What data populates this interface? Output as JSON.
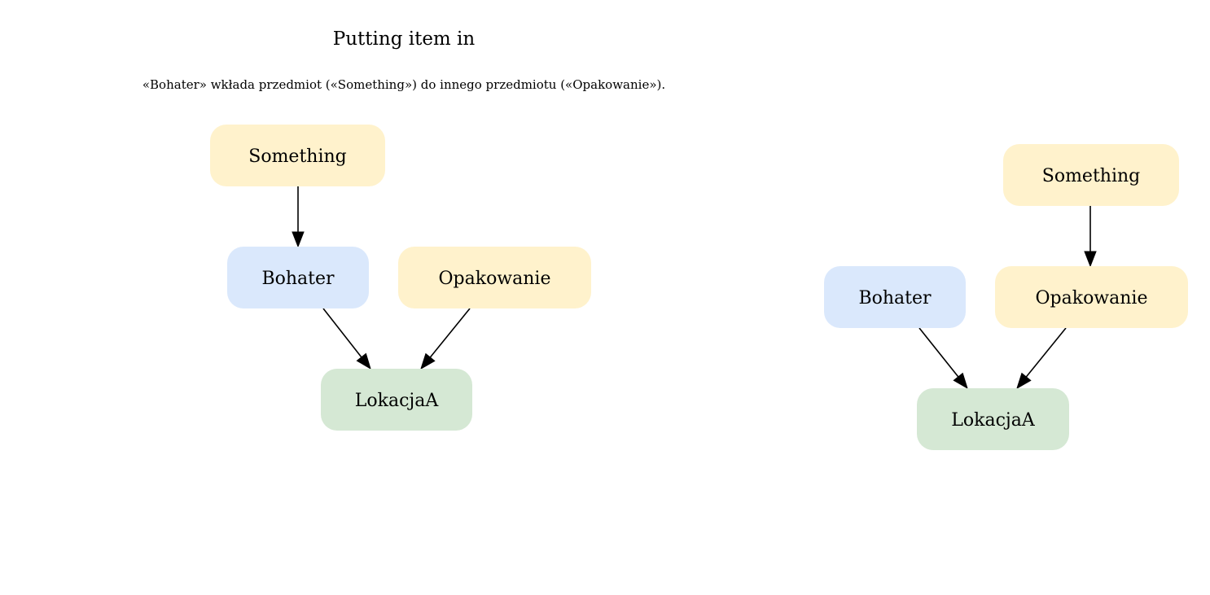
{
  "title": "Putting item in",
  "subtitle": "«Bohater» wkłada przedmiot («Something») do innego przedmiotu («Opakowanie»).",
  "colors": {
    "item": "#fff2cc",
    "hero": "#dae8fc",
    "location": "#d5e8d4",
    "edge": "#000000"
  },
  "diagrams": [
    {
      "name": "before",
      "nodes": [
        {
          "id": "something",
          "label": "Something",
          "kind": "item"
        },
        {
          "id": "bohater",
          "label": "Bohater",
          "kind": "hero"
        },
        {
          "id": "opakowanie",
          "label": "Opakowanie",
          "kind": "item"
        },
        {
          "id": "lokacja",
          "label": "LokacjaA",
          "kind": "location"
        }
      ],
      "edges": [
        {
          "from": "something",
          "to": "bohater"
        },
        {
          "from": "bohater",
          "to": "lokacja"
        },
        {
          "from": "opakowanie",
          "to": "lokacja"
        }
      ]
    },
    {
      "name": "after",
      "nodes": [
        {
          "id": "something",
          "label": "Something",
          "kind": "item"
        },
        {
          "id": "bohater",
          "label": "Bohater",
          "kind": "hero"
        },
        {
          "id": "opakowanie",
          "label": "Opakowanie",
          "kind": "item"
        },
        {
          "id": "lokacja",
          "label": "LokacjaA",
          "kind": "location"
        }
      ],
      "edges": [
        {
          "from": "something",
          "to": "opakowanie"
        },
        {
          "from": "bohater",
          "to": "lokacja"
        },
        {
          "from": "opakowanie",
          "to": "lokacja"
        }
      ]
    }
  ]
}
